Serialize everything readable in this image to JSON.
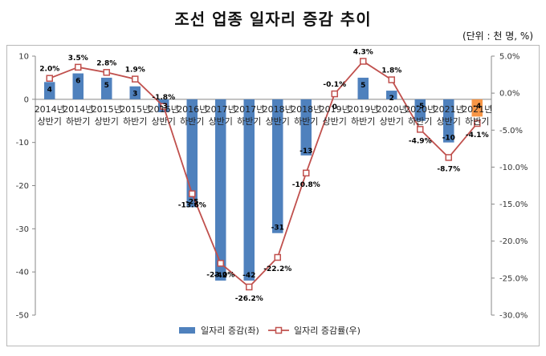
{
  "header": {
    "title": "조선 업종 일자리 증감 추이",
    "unit": "(단위 : 천 명, %)"
  },
  "chart_data": {
    "type": "bar",
    "categories": [
      [
        "2014년",
        "상반기"
      ],
      [
        "2014년",
        "하반기"
      ],
      [
        "2015년",
        "상반기"
      ],
      [
        "2015년",
        "하반기"
      ],
      [
        "2016년",
        "상반기"
      ],
      [
        "2016년",
        "하반기"
      ],
      [
        "2017년",
        "상반기"
      ],
      [
        "2017년",
        "하반기"
      ],
      [
        "2018년",
        "상반기"
      ],
      [
        "2018년",
        "하반기"
      ],
      [
        "2019년",
        "상반기"
      ],
      [
        "2019년",
        "하반기"
      ],
      [
        "2020년",
        "상반기"
      ],
      [
        "2020년",
        "하반기"
      ],
      [
        "2021년",
        "상반기"
      ],
      [
        "2021년",
        "하반기"
      ]
    ],
    "series": [
      {
        "name": "일자리 증감(좌)",
        "kind": "bar",
        "axis": "left",
        "values": [
          4,
          6,
          5,
          3,
          -3,
          -25,
          -42,
          -42,
          -31,
          -13,
          0,
          5,
          2,
          -5,
          -10,
          -4
        ],
        "labels": [
          "4",
          "6",
          "5",
          "3",
          "-3",
          "-25",
          "-42",
          "-42",
          "-31",
          "-13",
          "0",
          "5",
          "2",
          "-5",
          "-10",
          "-4"
        ],
        "color": "#4f81bd",
        "highlight_color": "#f79646",
        "highlight_index": 15
      },
      {
        "name": "일자리 증감률(우)",
        "kind": "line",
        "axis": "right",
        "values": [
          2.0,
          3.5,
          2.8,
          1.9,
          -1.8,
          -13.6,
          -23.0,
          -26.2,
          -22.2,
          -10.8,
          -0.1,
          4.3,
          1.8,
          -4.9,
          -8.7,
          -4.1
        ],
        "labels": [
          "2.0%",
          "3.5%",
          "2.8%",
          "1.9%",
          "-1.8%",
          "-13.6%",
          "-23.0%",
          "-26.2%",
          "-22.2%",
          "-10.8%",
          "-0.1%",
          "4.3%",
          "1.8%",
          "-4.9%",
          "-8.7%",
          "-4.1%"
        ],
        "color": "#c0504d",
        "last_label_color": "#e03020"
      }
    ],
    "y_left": {
      "min": -50,
      "max": 10,
      "ticks": [
        10,
        0,
        -10,
        -20,
        -30,
        -40,
        -50
      ]
    },
    "y_right": {
      "min": -30,
      "max": 5,
      "ticks": [
        5,
        0,
        -5,
        -10,
        -15,
        -20,
        -25,
        -30
      ],
      "tick_labels": [
        "5.0%",
        "0.0%",
        "-5.0%",
        "-10.0%",
        "-15.0%",
        "-20.0%",
        "-25.0%",
        "-30.0%"
      ]
    },
    "grid": false,
    "legend_position": "bottom"
  }
}
